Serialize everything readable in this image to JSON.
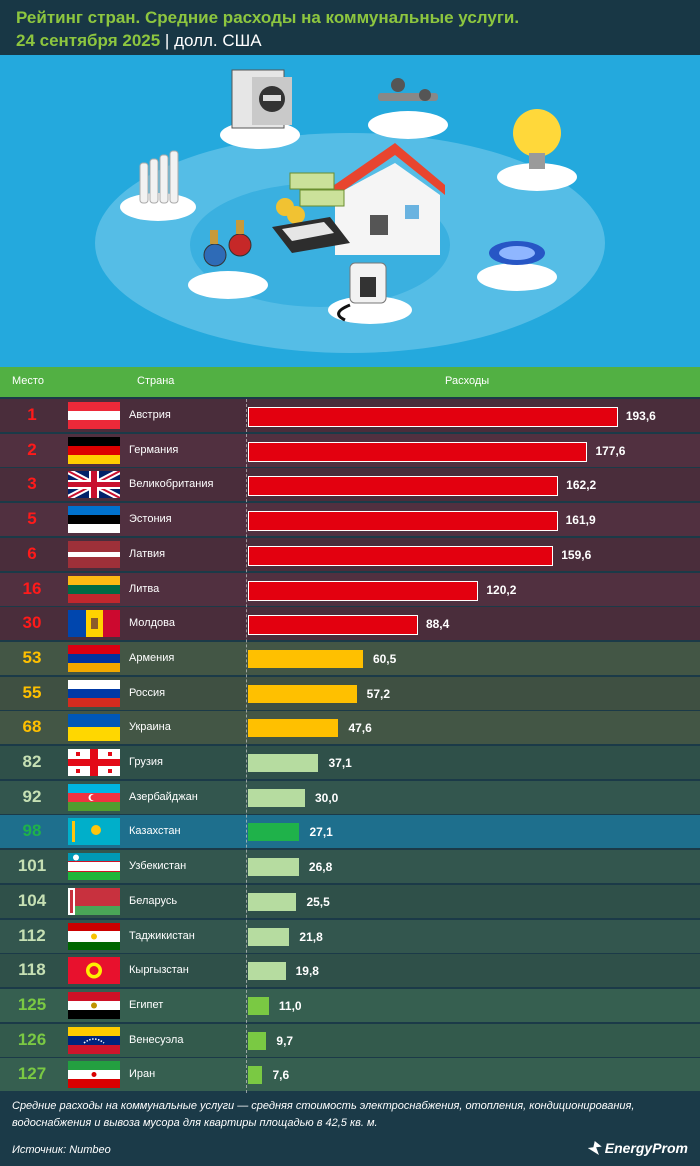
{
  "header": {
    "title": "Рейтинг стран. Средние расходы на коммунальные услуги.",
    "date": "24 сентября 2025",
    "separator": "|",
    "unit": "долл. США"
  },
  "columns": {
    "place": "Место",
    "country": "Страна",
    "expenses": "Расходы"
  },
  "colors": {
    "red_bar": "#e3000f",
    "yellow_bar": "#ffc000",
    "lightgreen_bar": "#b6dca0",
    "green_bar": "#1fb24a",
    "bright_green_bar": "#7ac943",
    "rank_red": "#ff1a1a",
    "rank_yellow": "#ffc000",
    "rank_green": "#c6e0b4",
    "rank_kz": "#1fb24a",
    "rank_bright": "#7ac943"
  },
  "chart_data": {
    "type": "bar",
    "orientation": "horizontal",
    "categories": [
      "Австрия",
      "Германия",
      "Великобритания",
      "Эстония",
      "Латвия",
      "Литва",
      "Молдова",
      "Армения",
      "Россия",
      "Украина",
      "Грузия",
      "Азербайджан",
      "Казахстан",
      "Узбекистан",
      "Беларусь",
      "Таджикистан",
      "Кыргызстан",
      "Египет",
      "Венесуэла",
      "Иран"
    ],
    "ranks": [
      "1",
      "2",
      "3",
      "5",
      "6",
      "16",
      "30",
      "53",
      "55",
      "68",
      "82",
      "92",
      "98",
      "101",
      "104",
      "112",
      "118",
      "125",
      "126",
      "127"
    ],
    "values": [
      193.6,
      177.6,
      162.2,
      161.9,
      159.6,
      120.2,
      88.4,
      60.5,
      57.2,
      47.6,
      37.1,
      30.0,
      27.1,
      26.8,
      25.5,
      21.8,
      19.8,
      11.0,
      9.7,
      7.6
    ],
    "value_labels": [
      "193,6",
      "177,6",
      "162,2",
      "161,9",
      "159,6",
      "120,2",
      "88,4",
      "60,5",
      "57,2",
      "47,6",
      "37,1",
      "30,0",
      "27,1",
      "26,8",
      "25,5",
      "21,8",
      "19,8",
      "11,0",
      "9,7",
      "7,6"
    ],
    "flags": [
      "austria-flag",
      "germany-flag",
      "uk-flag",
      "estonia-flag",
      "latvia-flag",
      "lithuania-flag",
      "moldova-flag",
      "armenia-flag",
      "russia-flag",
      "ukraine-flag",
      "georgia-flag",
      "azerbaijan-flag",
      "kazakhstan-flag",
      "uzbekistan-flag",
      "belarus-flag",
      "tajikistan-flag",
      "kyrgyzstan-flag",
      "egypt-flag",
      "venezuela-flag",
      "iran-flag"
    ],
    "groups": [
      "red",
      "red",
      "red",
      "red",
      "red",
      "red",
      "red",
      "yellow",
      "yellow",
      "yellow",
      "light",
      "light",
      "kz",
      "light",
      "light",
      "light",
      "light",
      "bright",
      "bright",
      "bright"
    ],
    "xlim": [
      0,
      200
    ],
    "xlabel": "Расходы",
    "title": "Рейтинг стран. Средние расходы на коммунальные услуги."
  },
  "footnote": "Средние расходы на коммунальные услуги — средняя стоимость электроснабжения, отопления, кондиционирования, водоснабжения и вывоза мусора для квартиры площадью в 42,5 кв. м.",
  "source": "Источник: Numbeo",
  "logo": "EnergyProm"
}
